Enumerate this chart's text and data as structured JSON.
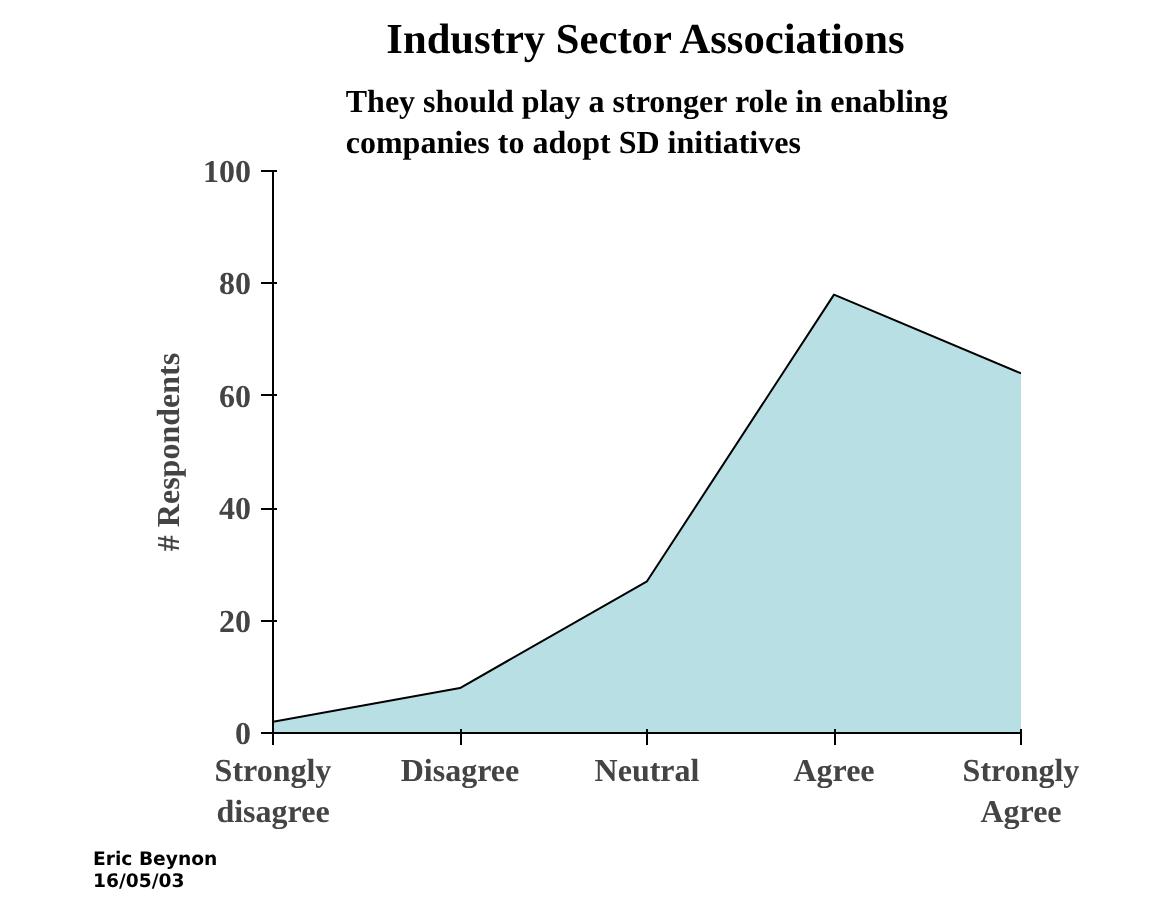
{
  "chart_data": {
    "type": "area",
    "title": "Industry Sector Associations",
    "subtitle": "They should play a stronger role in enabling companies to adopt SD initiatives",
    "ylabel": "# Respondents",
    "categories": [
      "Strongly disagree",
      "Disagree",
      "Neutral",
      "Agree",
      "Strongly Agree"
    ],
    "series": [
      {
        "color": "#b8dfe3",
        "values": [
          2,
          8,
          27,
          78,
          64
        ]
      }
    ],
    "ylim": [
      0,
      100
    ],
    "yticks": [
      0,
      20,
      40,
      60,
      80,
      100
    ],
    "grid": false,
    "annotations": [
      "Eric Beynon 16/05/03"
    ]
  }
}
